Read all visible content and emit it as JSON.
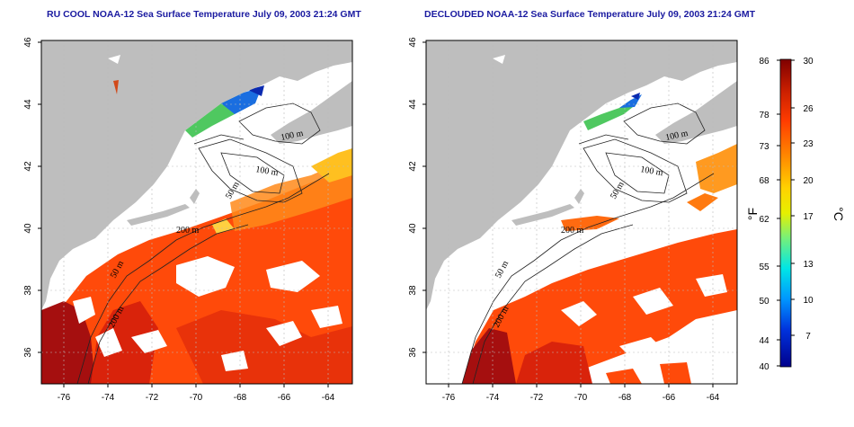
{
  "titles": {
    "left": "RU COOL NOAA-12 Sea Surface Temperature July 09, 2003 21:24 GMT",
    "right": "DECLOUDED NOAA-12 Sea Surface Temperature July 09, 2003 21:24 GMT"
  },
  "axes": {
    "lon_ticks": [
      "-76",
      "-74",
      "-72",
      "-70",
      "-68",
      "-66",
      "-64"
    ],
    "lat_ticks": [
      "46",
      "44",
      "42",
      "40",
      "38",
      "36"
    ]
  },
  "contour_labels": {
    "left": [
      "100 m",
      "100 m",
      "50 m",
      "200 m",
      "50 m",
      "200 m"
    ],
    "right": [
      "100 m",
      "100 m",
      "50 m",
      "200 m",
      "50 m",
      "200 m"
    ]
  },
  "colorbar": {
    "fahrenheit_ticks": [
      "86",
      "78",
      "73",
      "68",
      "62",
      "55",
      "50",
      "44",
      "40"
    ],
    "celsius_ticks": [
      "30",
      "26",
      "23",
      "20",
      "17",
      "13",
      "10",
      "7"
    ],
    "fahrenheit_unit": "°F",
    "celsius_unit": "°C",
    "colors": [
      "#7f0000",
      "#c81e00",
      "#ff3c00",
      "#ff8c00",
      "#ffd200",
      "#e6f000",
      "#78f078",
      "#00e6e6",
      "#0096ff",
      "#0032dc",
      "#00008c"
    ]
  },
  "colors": {
    "land": "#bebebe",
    "title": "#1a1aa0",
    "grid": "#bbbbbb"
  }
}
